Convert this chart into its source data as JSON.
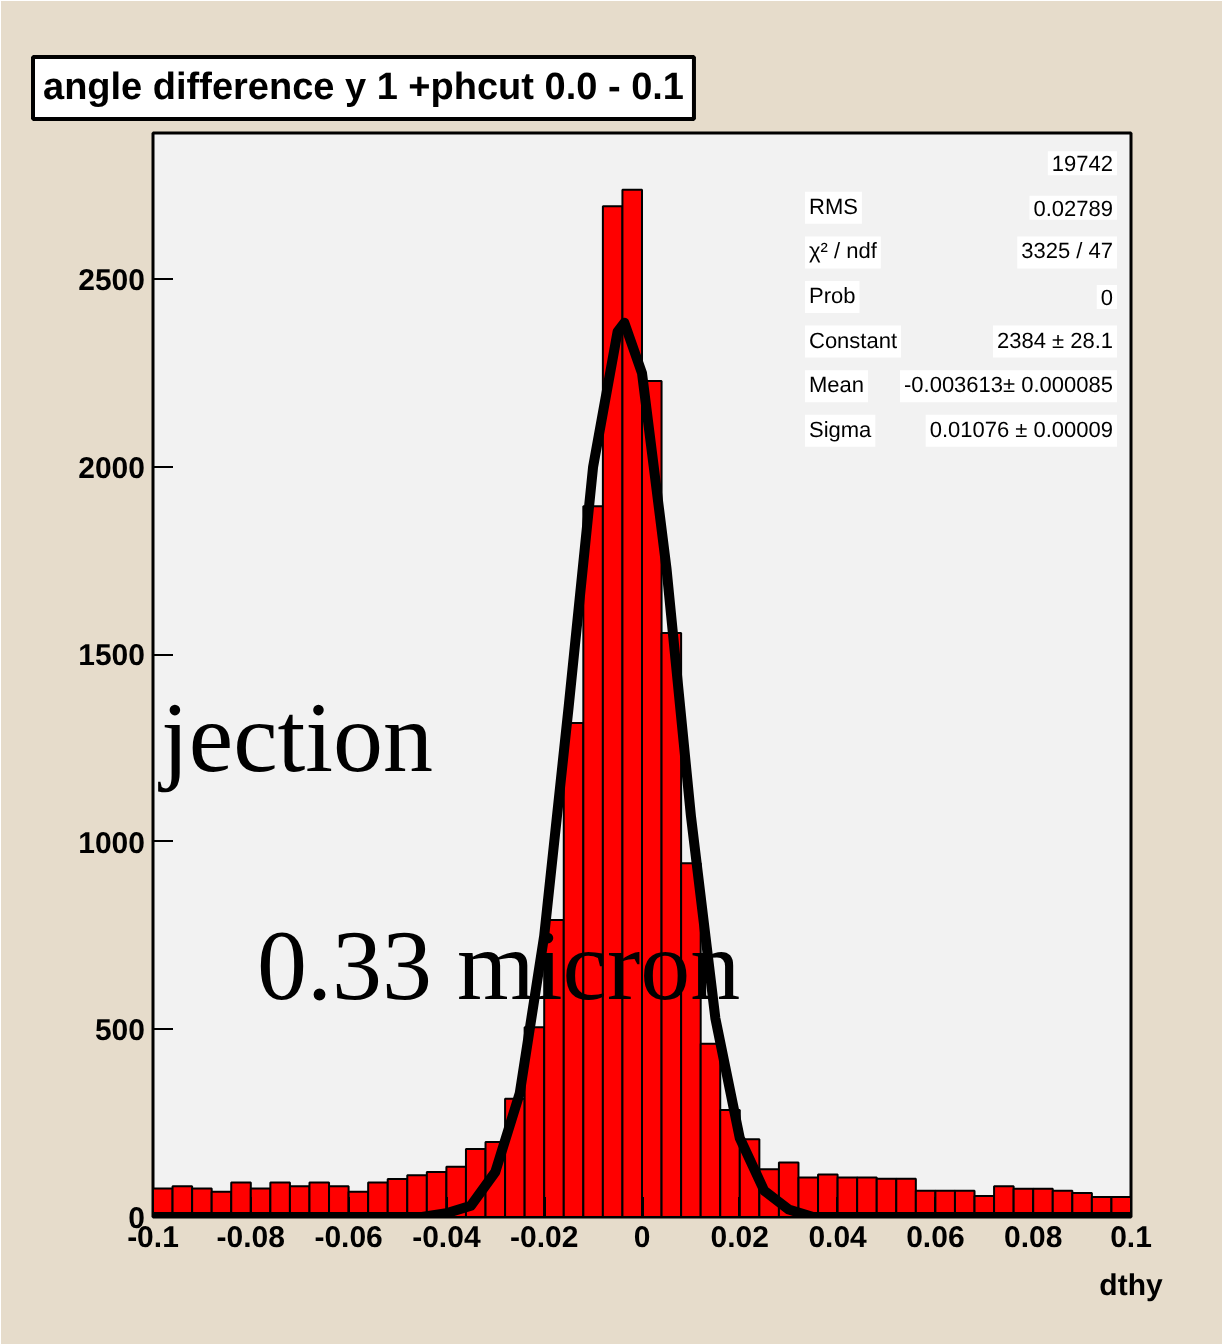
{
  "chart_data": {
    "type": "histogram",
    "title": "angle difference y 1 +phcut 0.0 - 0.1",
    "xlabel": "dthy",
    "bins": [
      -0.1,
      -0.096,
      -0.092,
      -0.088,
      -0.084,
      -0.08,
      -0.076,
      -0.072,
      -0.068,
      -0.064,
      -0.06,
      -0.056,
      -0.052,
      -0.048,
      -0.044,
      -0.04,
      -0.036,
      -0.032,
      -0.028,
      -0.024,
      -0.02,
      -0.016,
      -0.012,
      -0.008,
      -0.004,
      0,
      0.004,
      0.008,
      0.012,
      0.016,
      0.02,
      0.024,
      0.028,
      0.032,
      0.036,
      0.04,
      0.044,
      0.048,
      0.052,
      0.056,
      0.06,
      0.064,
      0.068,
      0.072,
      0.076,
      0.08,
      0.084,
      0.088,
      0.092,
      0.096,
      0.1
    ],
    "values": [
      76,
      82,
      76,
      67,
      92,
      76,
      92,
      82,
      92,
      82,
      67,
      92,
      101,
      111,
      120,
      134,
      181,
      200,
      315,
      506,
      792,
      1317,
      1895,
      2695,
      2739,
      2229,
      1557,
      943,
      462,
      285,
      207,
      127,
      145,
      105,
      113,
      105,
      105,
      102,
      102,
      70,
      70,
      70,
      56,
      82,
      75,
      75,
      70,
      64,
      53,
      53
    ],
    "color": "#ff0000",
    "series": [
      {
        "type": "line",
        "color": "#000000",
        "x": [
          -0.1,
          -0.06,
          -0.045,
          -0.04,
          -0.035,
          -0.03,
          -0.025,
          -0.02,
          -0.015,
          -0.01,
          -0.005,
          -0.0036,
          0,
          0.005,
          0.01,
          0.015,
          0.02,
          0.025,
          0.03,
          0.035,
          0.04,
          0.1
        ],
        "values": [
          0,
          0,
          0,
          10,
          30,
          120,
          330,
          750,
          1360,
          2000,
          2360,
          2384,
          2250,
          1730,
          1070,
          530,
          210,
          70,
          20,
          0,
          0,
          0
        ]
      }
    ],
    "xlim": [
      -0.1,
      0.1
    ],
    "ylim": [
      0,
      2890
    ],
    "xticks": [
      -0.1,
      -0.08,
      -0.06,
      -0.04,
      -0.02,
      0,
      0.02,
      0.04,
      0.06,
      0.08,
      0.1
    ],
    "yticks": [
      0,
      500,
      1000,
      1500,
      2000,
      2500
    ],
    "grid": false,
    "annotations": [
      "jection",
      "0.33 micron",
      "19742",
      "RMS",
      "0.02789",
      "χ² / ndf",
      "3325 / 47",
      "Prob",
      "0",
      "Constant",
      "2384 ± 28.1",
      "Mean",
      "-0.003613± 0.000085",
      "Sigma",
      "0.01076 ± 0.00009"
    ]
  }
}
